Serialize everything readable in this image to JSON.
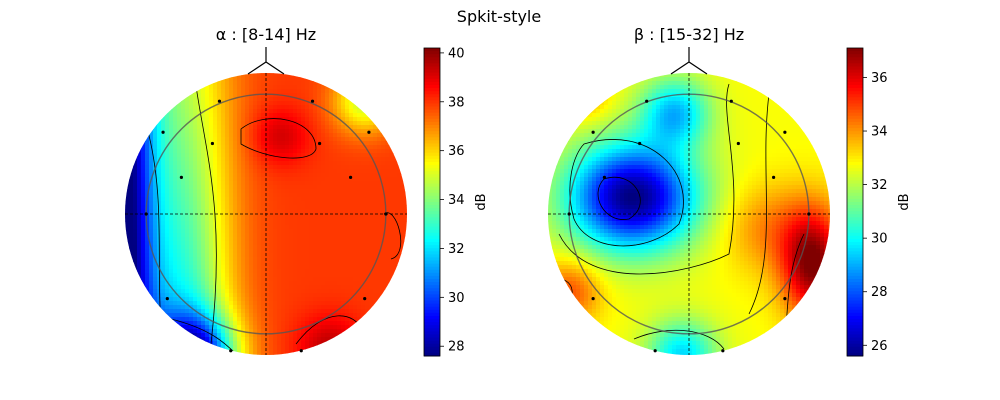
{
  "figure": {
    "suptitle": "Spkit-style"
  },
  "chart_data": [
    {
      "type": "heatmap",
      "title": "α : [8-14] Hz",
      "colorbar": {
        "label": "dB",
        "vmin": 27.6,
        "vmax": 40.2,
        "ticks": [
          28,
          30,
          32,
          34,
          36,
          38,
          40
        ]
      },
      "colormap": "jet",
      "electrodes": [
        [
          -0.33,
          0.8
        ],
        [
          0.33,
          0.8
        ],
        [
          -0.73,
          0.58
        ],
        [
          0.73,
          0.58
        ],
        [
          -0.38,
          0.5
        ],
        [
          0.38,
          0.5
        ],
        [
          -0.6,
          0.26
        ],
        [
          0.6,
          0.26
        ],
        [
          -0.85,
          0.0
        ],
        [
          0.85,
          0.0
        ],
        [
          -0.7,
          -0.6
        ],
        [
          0.7,
          -0.6
        ],
        [
          -0.25,
          -0.97
        ],
        [
          0.25,
          -0.97
        ]
      ]
    },
    {
      "type": "heatmap",
      "title": "β : [15-32] Hz",
      "colorbar": {
        "label": "dB",
        "vmin": 25.6,
        "vmax": 37.1,
        "ticks": [
          26,
          28,
          30,
          32,
          34,
          36
        ]
      },
      "colormap": "jet",
      "electrodes": [
        [
          -0.3,
          0.8
        ],
        [
          0.3,
          0.8
        ],
        [
          -0.68,
          0.58
        ],
        [
          0.68,
          0.58
        ],
        [
          -0.35,
          0.5
        ],
        [
          0.35,
          0.5
        ],
        [
          -0.6,
          0.26
        ],
        [
          0.6,
          0.26
        ],
        [
          -0.85,
          0.0
        ],
        [
          0.85,
          0.0
        ],
        [
          -0.68,
          -0.6
        ],
        [
          0.68,
          -0.6
        ],
        [
          -0.24,
          -0.97
        ],
        [
          0.24,
          -0.97
        ]
      ]
    }
  ]
}
